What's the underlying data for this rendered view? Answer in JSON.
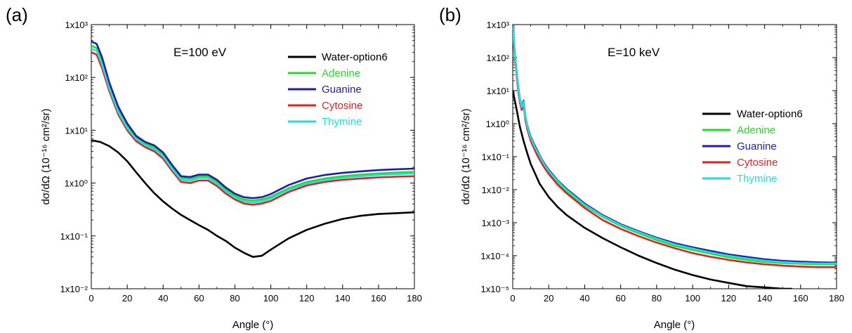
{
  "chart_data": [
    {
      "panel_label": "(a)",
      "type": "line",
      "annotation": "E=100 eV",
      "xlabel": "Angle (°)",
      "ylabel": "dσ/dΩ (10⁻¹⁶ cm²/sr)",
      "xlim": [
        0,
        180
      ],
      "xticks": [
        "0",
        "20",
        "40",
        "60",
        "80",
        "100",
        "120",
        "140",
        "160",
        "180"
      ],
      "ylim_log10": [
        -2,
        3
      ],
      "yticks": [
        "1x10⁻²",
        "1x10⁻¹",
        "1x10⁰",
        "1x10¹",
        "1x10²",
        "1x10³"
      ],
      "scale_y": "log",
      "legend_position": "top-right",
      "series": [
        {
          "name": "Water-option6",
          "color": "#000000",
          "x": [
            0,
            5,
            10,
            15,
            20,
            25,
            30,
            35,
            40,
            45,
            50,
            55,
            60,
            65,
            70,
            75,
            80,
            85,
            90,
            95,
            100,
            110,
            120,
            130,
            140,
            150,
            160,
            170,
            180
          ],
          "y": [
            6.5,
            6.0,
            5.0,
            3.8,
            2.6,
            1.6,
            1.0,
            0.65,
            0.45,
            0.33,
            0.25,
            0.2,
            0.16,
            0.13,
            0.1,
            0.08,
            0.06,
            0.048,
            0.04,
            0.042,
            0.055,
            0.09,
            0.13,
            0.17,
            0.21,
            0.24,
            0.26,
            0.27,
            0.28
          ]
        },
        {
          "name": "Adenine",
          "color": "#22dd22",
          "x": [
            0,
            3,
            6,
            10,
            15,
            20,
            25,
            30,
            35,
            40,
            45,
            50,
            55,
            60,
            65,
            70,
            75,
            80,
            85,
            90,
            95,
            100,
            110,
            120,
            130,
            140,
            150,
            160,
            170,
            180
          ],
          "y": [
            400,
            360,
            200,
            70,
            25,
            12,
            7.2,
            5.5,
            4.8,
            3.4,
            2.0,
            1.25,
            1.2,
            1.35,
            1.35,
            1.05,
            0.75,
            0.58,
            0.49,
            0.47,
            0.49,
            0.55,
            0.8,
            1.05,
            1.22,
            1.35,
            1.45,
            1.52,
            1.58,
            1.63
          ]
        },
        {
          "name": "Guanine",
          "color": "#1c1cb4",
          "x": [
            0,
            3,
            6,
            10,
            15,
            20,
            25,
            30,
            35,
            40,
            45,
            50,
            55,
            60,
            65,
            70,
            75,
            80,
            85,
            90,
            95,
            100,
            110,
            120,
            130,
            140,
            150,
            160,
            170,
            180
          ],
          "y": [
            480,
            430,
            240,
            80,
            28,
            13.5,
            7.8,
            6.0,
            5.2,
            3.8,
            2.2,
            1.35,
            1.3,
            1.45,
            1.45,
            1.15,
            0.82,
            0.63,
            0.54,
            0.52,
            0.54,
            0.62,
            0.92,
            1.22,
            1.42,
            1.56,
            1.67,
            1.76,
            1.83,
            1.88
          ]
        },
        {
          "name": "Cytosine",
          "color": "#dd2222",
          "x": [
            0,
            3,
            6,
            10,
            15,
            20,
            25,
            30,
            35,
            40,
            45,
            50,
            55,
            60,
            65,
            70,
            75,
            80,
            85,
            90,
            95,
            100,
            110,
            120,
            130,
            140,
            150,
            160,
            170,
            180
          ],
          "y": [
            300,
            270,
            150,
            55,
            20,
            10,
            6.2,
            4.8,
            4.0,
            2.9,
            1.7,
            1.05,
            1.0,
            1.12,
            1.12,
            0.88,
            0.63,
            0.49,
            0.41,
            0.39,
            0.41,
            0.46,
            0.68,
            0.9,
            1.05,
            1.15,
            1.22,
            1.28,
            1.32,
            1.35
          ]
        },
        {
          "name": "Thymine",
          "color": "#22dddd",
          "x": [
            0,
            3,
            6,
            10,
            15,
            20,
            25,
            30,
            35,
            40,
            45,
            50,
            55,
            60,
            65,
            70,
            75,
            80,
            85,
            90,
            95,
            100,
            110,
            120,
            130,
            140,
            150,
            160,
            170,
            180
          ],
          "y": [
            350,
            320,
            175,
            62,
            22,
            11,
            6.8,
            5.2,
            4.4,
            3.2,
            1.85,
            1.15,
            1.1,
            1.25,
            1.25,
            0.97,
            0.69,
            0.53,
            0.45,
            0.43,
            0.45,
            0.51,
            0.75,
            0.98,
            1.14,
            1.26,
            1.35,
            1.42,
            1.48,
            1.52
          ]
        }
      ]
    },
    {
      "panel_label": "(b)",
      "type": "line",
      "annotation": "E=10 keV",
      "xlabel": "Angle (°)",
      "ylabel": "dσ/dΩ (10⁻¹⁶ cm²/sr)",
      "xlim": [
        0,
        180
      ],
      "xticks": [
        "0",
        "20",
        "40",
        "60",
        "80",
        "100",
        "120",
        "140",
        "160",
        "180"
      ],
      "ylim_log10": [
        -5,
        3
      ],
      "yticks": [
        "1x10⁻⁵",
        "1x10⁻⁴",
        "1x10⁻³",
        "1x10⁻²",
        "1x10⁻¹",
        "1x10⁰",
        "1x10¹",
        "1x10²",
        "1x10³"
      ],
      "scale_y": "log",
      "legend_position": "center-right",
      "series": [
        {
          "name": "Water-option6",
          "color": "#000000",
          "x": [
            0,
            2,
            4,
            6,
            8,
            10,
            15,
            20,
            25,
            30,
            40,
            50,
            60,
            70,
            80,
            90,
            100,
            110,
            120,
            130,
            140,
            150,
            155
          ],
          "y": [
            10,
            3,
            0.8,
            0.3,
            0.13,
            0.06,
            0.015,
            0.006,
            0.003,
            0.0017,
            0.0007,
            0.00034,
            0.00018,
            0.0001,
            6e-05,
            3.8e-05,
            2.6e-05,
            1.9e-05,
            1.5e-05,
            1.2e-05,
            1.1e-05,
            1e-05,
            1e-05
          ]
        },
        {
          "name": "Adenine",
          "color": "#22dd22",
          "x": [
            0,
            1,
            2,
            3,
            4,
            5,
            6,
            7,
            8,
            10,
            12,
            14,
            16,
            18,
            20,
            25,
            30,
            40,
            50,
            60,
            70,
            80,
            90,
            100,
            110,
            120,
            130,
            140,
            150,
            160,
            170,
            180
          ],
          "y": [
            800,
            150,
            40,
            12,
            5,
            3,
            4.5,
            1.5,
            0.8,
            0.35,
            0.2,
            0.12,
            0.075,
            0.05,
            0.035,
            0.017,
            0.009,
            0.0033,
            0.0015,
            0.0008,
            0.00048,
            0.0003,
            0.0002,
            0.00015,
            0.000115,
            9e-05,
            7.5e-05,
            6.5e-05,
            6e-05,
            5.7e-05,
            5.5e-05,
            5.5e-05
          ]
        },
        {
          "name": "Guanine",
          "color": "#1c1cb4",
          "x": [
            0,
            1,
            2,
            3,
            4,
            5,
            6,
            7,
            8,
            10,
            12,
            14,
            16,
            18,
            20,
            25,
            30,
            40,
            50,
            60,
            70,
            80,
            90,
            100,
            110,
            120,
            130,
            140,
            150,
            160,
            170,
            180
          ],
          "y": [
            900,
            170,
            45,
            14,
            5.5,
            3.3,
            5,
            1.7,
            0.9,
            0.4,
            0.23,
            0.14,
            0.085,
            0.057,
            0.04,
            0.019,
            0.0105,
            0.0038,
            0.0017,
            0.0009,
            0.00055,
            0.00035,
            0.00024,
            0.00018,
            0.00014,
            0.00011,
            9.2e-05,
            7.8e-05,
            7e-05,
            6.6e-05,
            6.3e-05,
            6.2e-05
          ]
        },
        {
          "name": "Cytosine",
          "color": "#dd2222",
          "x": [
            0,
            1,
            2,
            3,
            4,
            5,
            6,
            7,
            8,
            10,
            12,
            14,
            16,
            18,
            20,
            25,
            30,
            40,
            50,
            60,
            70,
            80,
            90,
            100,
            110,
            120,
            130,
            140,
            150,
            160,
            170,
            180
          ],
          "y": [
            700,
            130,
            35,
            10,
            4.3,
            2.6,
            3.9,
            1.3,
            0.7,
            0.3,
            0.17,
            0.1,
            0.065,
            0.043,
            0.03,
            0.014,
            0.0077,
            0.0028,
            0.0012,
            0.00065,
            0.00039,
            0.00025,
            0.00017,
            0.00012,
            9.3e-05,
            7.5e-05,
            6.3e-05,
            5.5e-05,
            5e-05,
            4.7e-05,
            4.5e-05,
            4.5e-05
          ]
        },
        {
          "name": "Thymine",
          "color": "#22dddd",
          "x": [
            0,
            1,
            2,
            3,
            4,
            5,
            6,
            7,
            8,
            10,
            12,
            14,
            16,
            18,
            20,
            25,
            30,
            40,
            50,
            60,
            70,
            80,
            90,
            100,
            110,
            120,
            130,
            140,
            150,
            160,
            170,
            180
          ],
          "y": [
            850,
            160,
            42,
            13,
            5.2,
            3.1,
            4.7,
            1.6,
            0.85,
            0.37,
            0.21,
            0.13,
            0.08,
            0.053,
            0.037,
            0.018,
            0.0098,
            0.0035,
            0.0016,
            0.00085,
            0.00052,
            0.00033,
            0.00022,
            0.000165,
            0.000125,
            0.0001,
            8.3e-05,
            7.1e-05,
            6.4e-05,
            6e-05,
            5.8e-05,
            5.8e-05
          ]
        }
      ]
    }
  ]
}
